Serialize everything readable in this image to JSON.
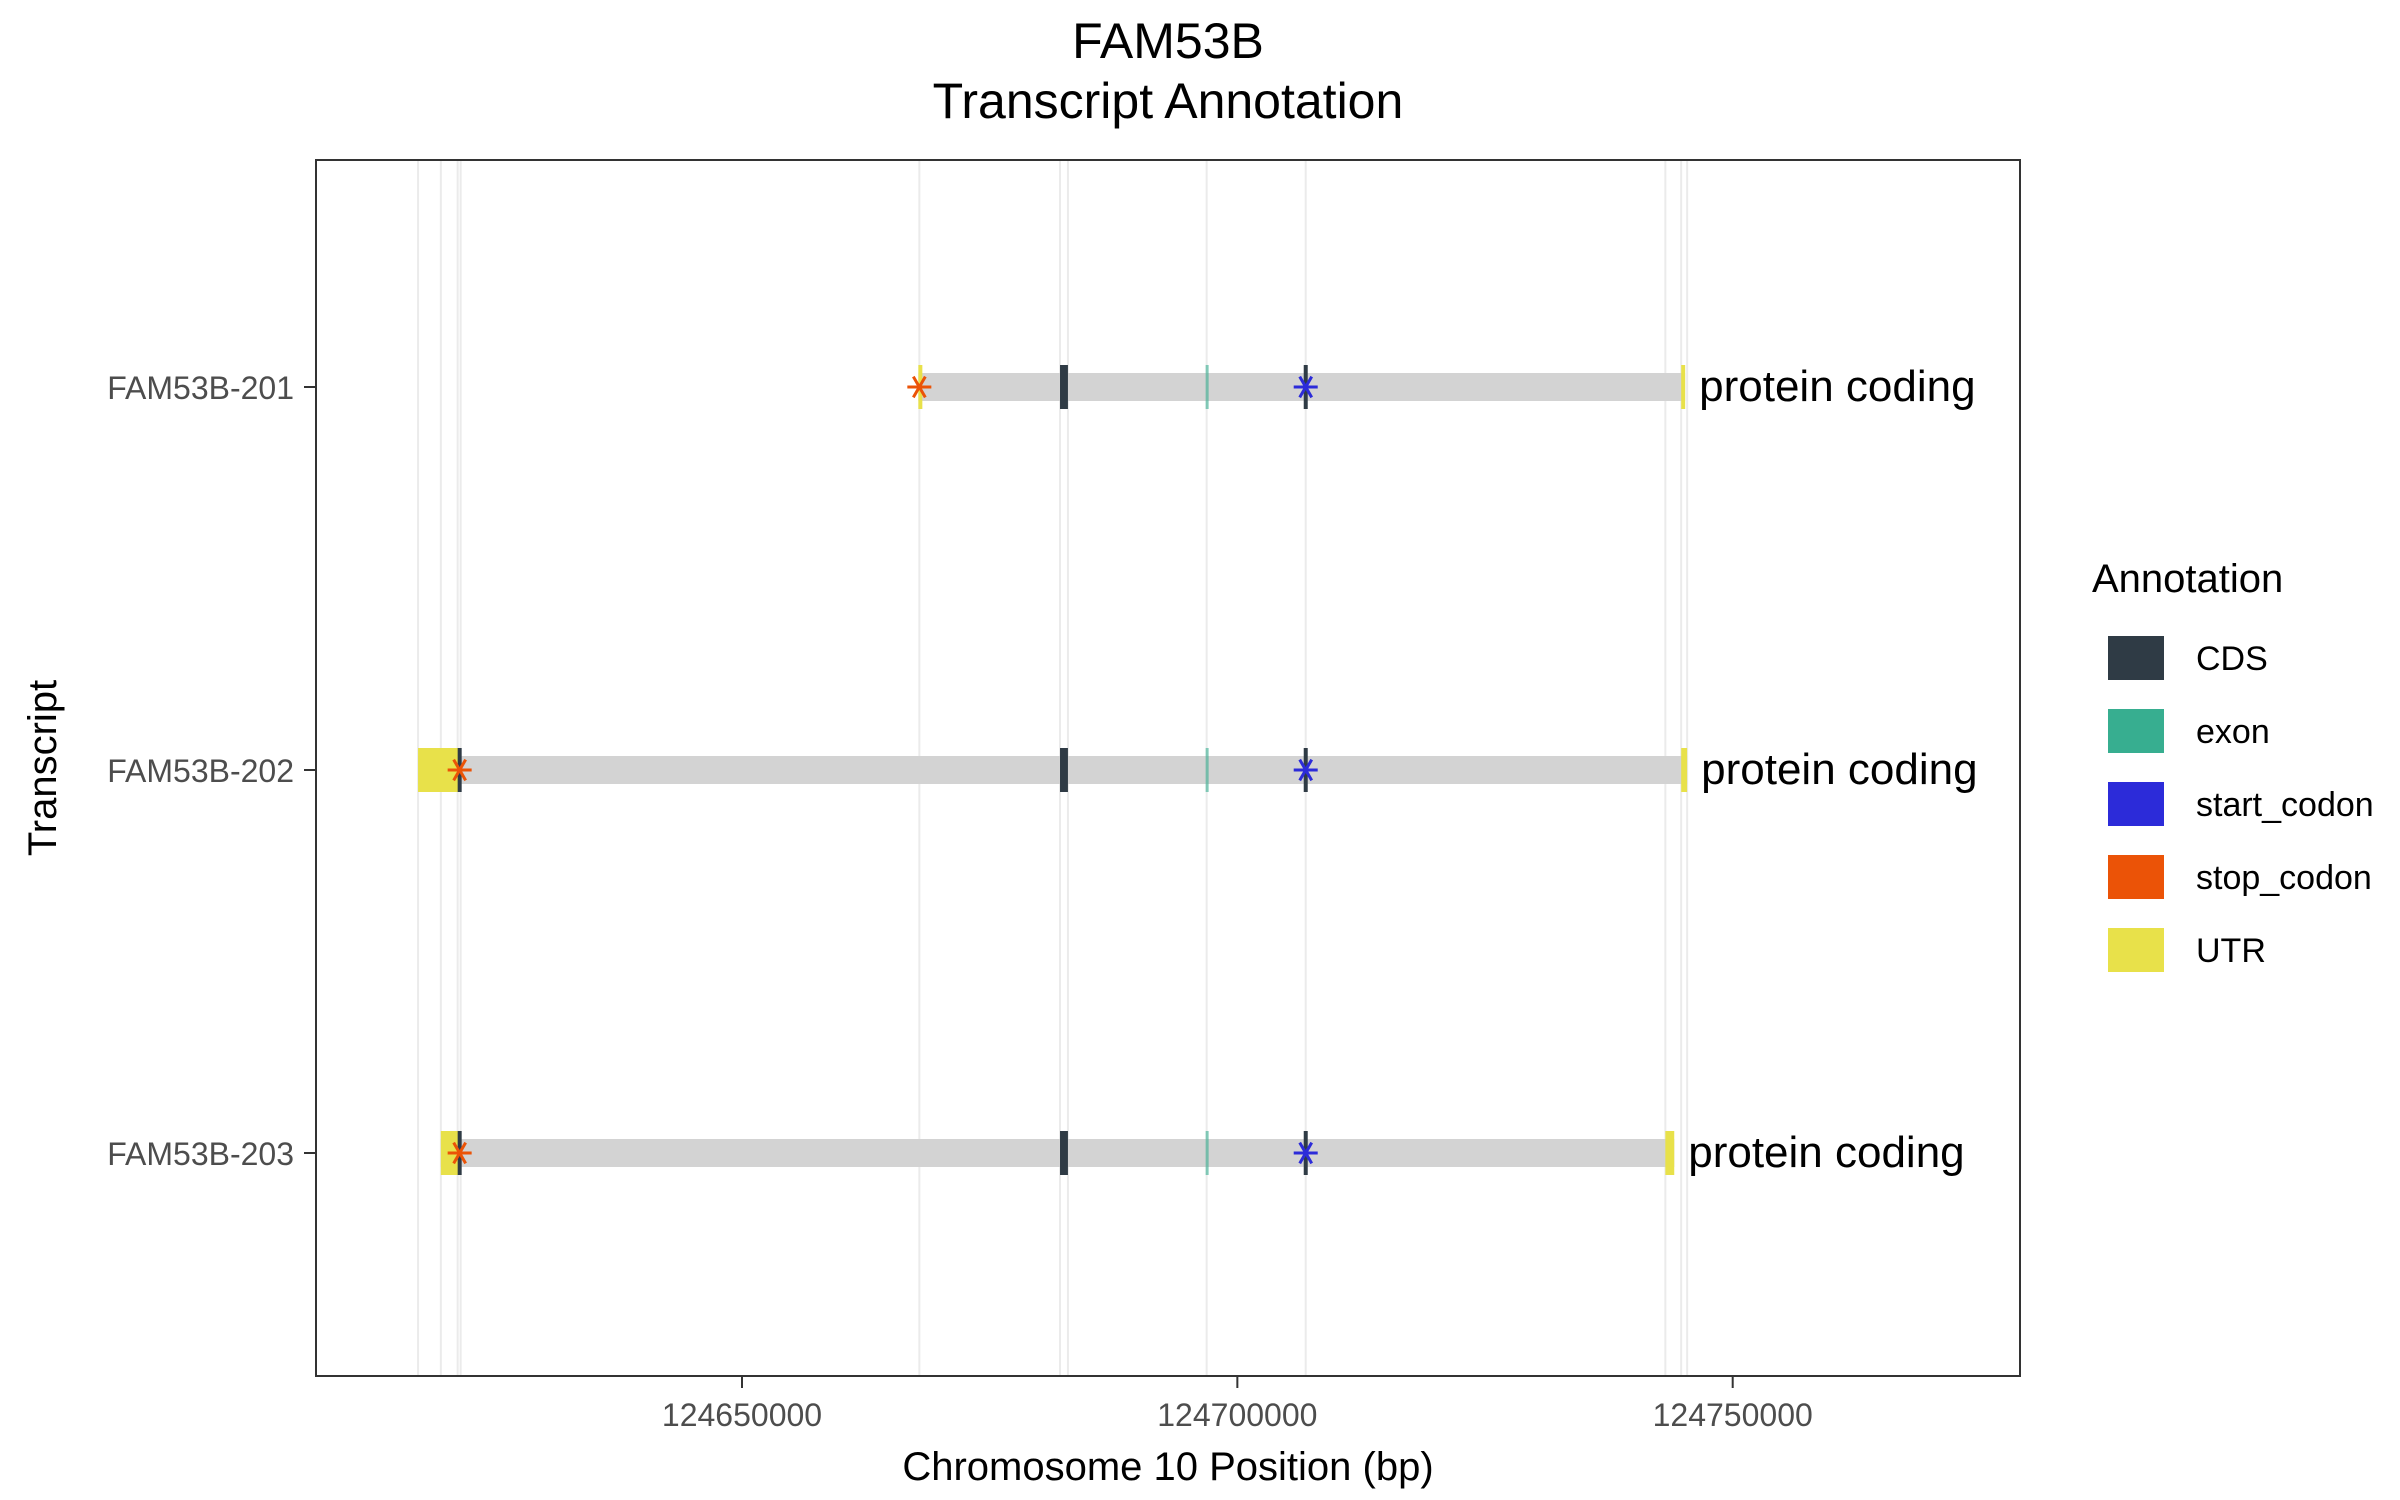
{
  "chart_data": {
    "type": "transcript-annotation",
    "title_line1": "FAM53B",
    "title_line2": "Transcript Annotation",
    "xlabel": "Chromosome 10 Position (bp)",
    "ylabel": "Transcript",
    "xlim": [
      124607000,
      124779000
    ],
    "x_ticks": [
      124650000,
      124700000,
      124750000
    ],
    "x_tick_labels": [
      "124650000",
      "124700000",
      "124750000"
    ],
    "grid": true,
    "legend_position": "right",
    "legend": {
      "title": "Annotation",
      "items": [
        {
          "label": "CDS",
          "color": "#2f3b45"
        },
        {
          "label": "exon",
          "color": "#37ae90"
        },
        {
          "label": "start_codon",
          "color": "#2c2bd9"
        },
        {
          "label": "stop_codon",
          "color": "#eb5307"
        },
        {
          "label": "UTR",
          "color": "#e8e14a"
        }
      ]
    },
    "transcripts": [
      {
        "name": "FAM53B-203",
        "biotype_label": "protein coding",
        "start": 124619600,
        "end": 124744100,
        "utr": [
          [
            124619600,
            124621400
          ],
          [
            124743200,
            124744100
          ]
        ],
        "cds": [
          [
            124621300,
            124621600
          ],
          [
            124682100,
            124682900
          ],
          [
            124706700,
            124707000
          ]
        ],
        "exon": [
          [
            124696800,
            124697000
          ]
        ],
        "stop_codon": 124621500,
        "start_codon": 124706900
      },
      {
        "name": "FAM53B-202",
        "biotype_label": "protein coding",
        "start": 124617300,
        "end": 124745400,
        "utr": [
          [
            124617300,
            124621400
          ],
          [
            124744800,
            124745400
          ]
        ],
        "cds": [
          [
            124621300,
            124621600
          ],
          [
            124682100,
            124682900
          ],
          [
            124706700,
            124707000
          ]
        ],
        "exon": [
          [
            124696800,
            124697000
          ]
        ],
        "stop_codon": 124621500,
        "start_codon": 124706900
      },
      {
        "name": "FAM53B-201",
        "biotype_label": "protein coding",
        "start": 124667800,
        "end": 124745200,
        "utr": [
          [
            124667800,
            124668100
          ],
          [
            124744800,
            124745200
          ]
        ],
        "cds": [
          [
            124682100,
            124682900
          ],
          [
            124706700,
            124707000
          ]
        ],
        "exon": [
          [
            124696800,
            124697000
          ]
        ],
        "stop_codon": 124667900,
        "start_codon": 124706900
      }
    ],
    "backbone_color": "#d3d3d3",
    "vertical_guides": [
      124617300,
      124619600,
      124621300,
      124621600,
      124667900,
      124682100,
      124682900,
      124696900,
      124706900,
      124743200,
      124744800,
      124745400
    ]
  }
}
